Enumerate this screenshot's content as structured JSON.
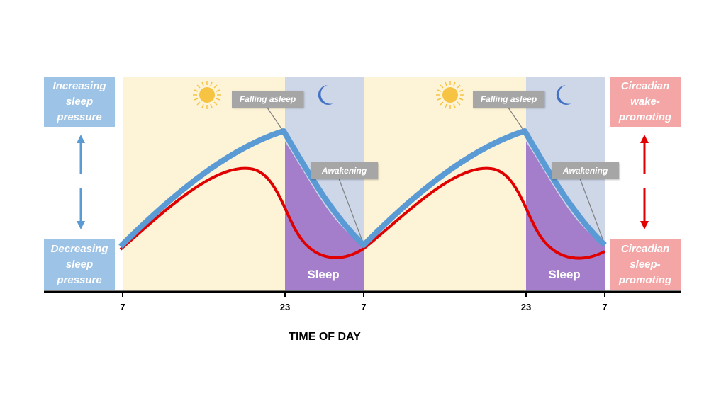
{
  "left_labels": {
    "top": "Increasing\nsleep\npressure",
    "bottom": "Decreasing\nsleep\npressure"
  },
  "right_labels": {
    "top": "Circadian\nwake-\npromoting",
    "bottom": "Circadian\nsleep-\npromoting"
  },
  "callouts": {
    "falling_asleep": "Falling asleep",
    "awakening": "Awakening"
  },
  "region_label": "Sleep",
  "ticks": [
    "7",
    "23",
    "7",
    "23",
    "7"
  ],
  "x_axis_title": "TIME OF DAY",
  "colors": {
    "day_background": "#fdf3d6",
    "night_background": "#cdd7e8",
    "sleep_fill": "#a57ecb",
    "sleep_pressure_line": "#5b9bd5",
    "circadian_line": "#e00000",
    "pressure_box": "#9dc3e6",
    "circadian_box": "#f4a6a6",
    "callout_box": "#a6a6a6",
    "sun": "#f6c343",
    "moon": "#4472c4"
  },
  "icons": [
    "sun-icon",
    "moon-icon"
  ]
}
